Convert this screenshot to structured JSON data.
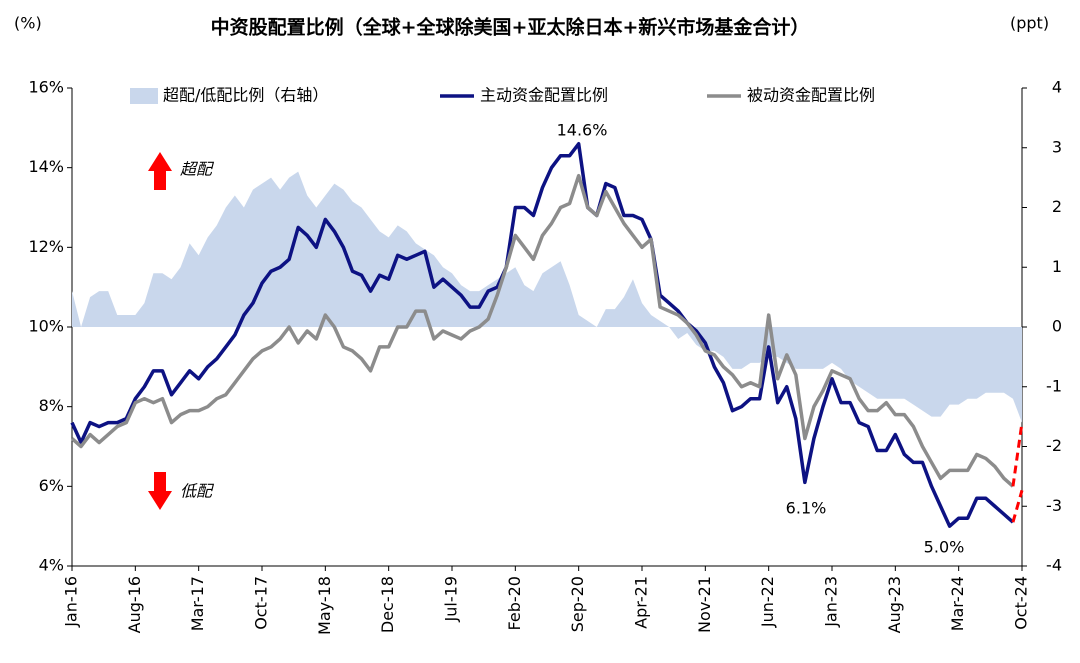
{
  "chart_data": {
    "type": "line",
    "title": "中资股配置比例（全球+全球除美国+亚太除日本+新兴市场基金合计）",
    "y_label": "(%)",
    "y2_label": "(ppt)",
    "categories": [
      "Jan-16",
      null,
      null,
      null,
      null,
      null,
      null,
      "Aug-16",
      null,
      null,
      null,
      null,
      null,
      null,
      "Mar-17",
      null,
      null,
      null,
      null,
      null,
      null,
      "Oct-17",
      null,
      null,
      null,
      null,
      null,
      null,
      "May-18",
      null,
      null,
      null,
      null,
      null,
      null,
      "Dec-18",
      null,
      null,
      null,
      null,
      null,
      null,
      "Jul-19",
      null,
      null,
      null,
      null,
      null,
      null,
      "Feb-20",
      null,
      null,
      null,
      null,
      null,
      null,
      "Sep-20",
      null,
      null,
      null,
      null,
      null,
      null,
      "Apr-21",
      null,
      null,
      null,
      null,
      null,
      null,
      "Nov-21",
      null,
      null,
      null,
      null,
      null,
      null,
      "Jun-22",
      null,
      null,
      null,
      null,
      null,
      null,
      "Jan-23",
      null,
      null,
      null,
      null,
      null,
      null,
      "Aug-23",
      null,
      null,
      null,
      null,
      null,
      null,
      "Mar-24",
      null,
      null,
      null,
      null,
      null,
      null,
      "Oct-24"
    ],
    "ylim": [
      4,
      16
    ],
    "yticks": [
      {
        "value": 4,
        "label": "4%"
      },
      {
        "value": 6,
        "label": "6%"
      },
      {
        "value": 8,
        "label": "8%"
      },
      {
        "value": 10,
        "label": "10%"
      },
      {
        "value": 12,
        "label": "12%"
      },
      {
        "value": 14,
        "label": "14%"
      },
      {
        "value": 16,
        "label": "16%"
      }
    ],
    "y2lim": [
      -4,
      4
    ],
    "y2ticks": [
      -4,
      -3,
      -2,
      -1,
      0,
      1,
      2,
      3,
      4
    ],
    "series": [
      {
        "name": "超配/低配比例（右轴）",
        "type": "area",
        "axis": "y2",
        "color": "#c9d7ec",
        "values": [
          0.6,
          0.0,
          0.5,
          0.6,
          0.6,
          0.2,
          0.2,
          0.2,
          0.4,
          0.9,
          0.9,
          0.8,
          1.0,
          1.4,
          1.2,
          1.5,
          1.7,
          2.0,
          2.2,
          2.0,
          2.3,
          2.4,
          2.5,
          2.3,
          2.5,
          2.6,
          2.2,
          2.0,
          2.2,
          2.4,
          2.3,
          2.1,
          2.0,
          1.8,
          1.6,
          1.5,
          1.7,
          1.6,
          1.4,
          1.3,
          1.2,
          1.0,
          0.9,
          0.7,
          0.6,
          0.6,
          0.7,
          0.8,
          0.9,
          1.0,
          0.7,
          0.6,
          0.9,
          1.0,
          1.1,
          0.7,
          0.2,
          0.1,
          0.0,
          0.3,
          0.3,
          0.5,
          0.8,
          0.4,
          0.2,
          0.1,
          0.0,
          -0.2,
          -0.1,
          -0.3,
          -0.4,
          -0.4,
          -0.5,
          -0.7,
          -0.7,
          -0.6,
          -0.6,
          -0.5,
          -0.5,
          -0.6,
          -0.7,
          -0.7,
          -0.7,
          -0.7,
          -0.6,
          -0.7,
          -0.9,
          -1.0,
          -1.1,
          -1.2,
          -1.2,
          -1.2,
          -1.2,
          -1.3,
          -1.4,
          -1.5,
          -1.5,
          -1.3,
          -1.3,
          -1.2,
          -1.2,
          -1.1,
          -1.1,
          -1.1,
          -1.2,
          -1.6
        ]
      },
      {
        "name": "主动资金配置比例",
        "type": "line",
        "color": "#0d1283",
        "values": [
          7.6,
          7.1,
          7.6,
          7.5,
          7.6,
          7.6,
          7.7,
          8.2,
          8.5,
          8.9,
          8.9,
          8.3,
          8.6,
          8.9,
          8.7,
          9.0,
          9.2,
          9.5,
          9.8,
          10.3,
          10.6,
          11.1,
          11.4,
          11.5,
          11.7,
          12.5,
          12.3,
          12.0,
          12.7,
          12.4,
          12.0,
          11.4,
          11.3,
          10.9,
          11.3,
          11.2,
          11.8,
          11.7,
          11.8,
          11.9,
          11.0,
          11.2,
          11.0,
          10.8,
          10.5,
          10.5,
          10.9,
          11.0,
          11.5,
          13.0,
          13.0,
          12.8,
          13.5,
          14.0,
          14.3,
          14.3,
          14.6,
          13.0,
          12.8,
          13.6,
          13.5,
          12.8,
          12.8,
          12.7,
          12.2,
          10.8,
          10.6,
          10.4,
          10.1,
          9.9,
          9.6,
          9.0,
          8.6,
          7.9,
          8.0,
          8.2,
          8.2,
          9.5,
          8.1,
          8.5,
          7.7,
          6.1,
          7.2,
          8.0,
          8.7,
          8.1,
          8.1,
          7.6,
          7.5,
          6.9,
          6.9,
          7.3,
          6.8,
          6.6,
          6.6,
          6.0,
          5.5,
          5.0,
          5.2,
          5.2,
          5.7,
          5.7,
          5.5,
          5.3,
          5.1,
          null
        ]
      },
      {
        "name": "被动资金配置比例",
        "type": "line",
        "color": "#8c8c8c",
        "values": [
          7.2,
          7.0,
          7.3,
          7.1,
          7.3,
          7.5,
          7.6,
          8.1,
          8.2,
          8.1,
          8.2,
          7.6,
          7.8,
          7.9,
          7.9,
          8.0,
          8.2,
          8.3,
          8.6,
          8.9,
          9.2,
          9.4,
          9.5,
          9.7,
          10.0,
          9.6,
          9.9,
          9.7,
          10.3,
          10.0,
          9.5,
          9.4,
          9.2,
          8.9,
          9.5,
          9.5,
          10.0,
          10.0,
          10.4,
          10.4,
          9.7,
          9.9,
          9.8,
          9.7,
          9.9,
          10.0,
          10.2,
          10.8,
          11.5,
          12.3,
          12.0,
          11.7,
          12.3,
          12.6,
          13.0,
          13.1,
          13.8,
          13.0,
          12.8,
          13.4,
          13.0,
          12.6,
          12.3,
          12.0,
          12.2,
          10.5,
          10.4,
          10.3,
          10.1,
          9.8,
          9.4,
          9.3,
          9.0,
          8.8,
          8.5,
          8.6,
          8.5,
          10.3,
          8.7,
          9.3,
          8.8,
          7.2,
          8.0,
          8.4,
          8.9,
          8.8,
          8.7,
          8.2,
          7.9,
          7.9,
          8.1,
          7.8,
          7.8,
          7.5,
          7.0,
          6.6,
          6.2,
          6.4,
          6.4,
          6.4,
          6.8,
          6.7,
          6.5,
          6.2,
          6.0,
          null
        ]
      }
    ],
    "projections": [
      {
        "color": "#ff0000",
        "values": [
          null,
          null,
          null,
          null,
          null,
          null,
          null,
          null,
          null,
          null,
          null,
          null,
          null,
          null,
          null,
          null,
          null,
          null,
          null,
          null,
          null,
          null,
          null,
          null,
          null,
          null,
          null,
          null,
          null,
          null,
          null,
          null,
          null,
          null,
          null,
          null,
          null,
          null,
          null,
          null,
          null,
          null,
          null,
          null,
          null,
          null,
          null,
          null,
          null,
          null,
          null,
          null,
          null,
          null,
          null,
          null,
          null,
          null,
          null,
          null,
          null,
          null,
          null,
          null,
          null,
          null,
          null,
          null,
          null,
          null,
          null,
          null,
          null,
          null,
          null,
          null,
          null,
          null,
          null,
          null,
          null,
          null,
          null,
          null,
          null,
          null,
          null,
          null,
          null,
          null,
          null,
          null,
          null,
          null,
          null,
          null,
          null,
          null,
          null,
          null,
          null,
          null,
          null,
          null,
          5.1,
          5.9
        ]
      },
      {
        "color": "#ff0000",
        "values": [
          null,
          null,
          null,
          null,
          null,
          null,
          null,
          null,
          null,
          null,
          null,
          null,
          null,
          null,
          null,
          null,
          null,
          null,
          null,
          null,
          null,
          null,
          null,
          null,
          null,
          null,
          null,
          null,
          null,
          null,
          null,
          null,
          null,
          null,
          null,
          null,
          null,
          null,
          null,
          null,
          null,
          null,
          null,
          null,
          null,
          null,
          null,
          null,
          null,
          null,
          null,
          null,
          null,
          null,
          null,
          null,
          null,
          null,
          null,
          null,
          null,
          null,
          null,
          null,
          null,
          null,
          null,
          null,
          null,
          null,
          null,
          null,
          null,
          null,
          null,
          null,
          null,
          null,
          null,
          null,
          null,
          null,
          null,
          null,
          null,
          null,
          null,
          null,
          null,
          null,
          null,
          null,
          null,
          null,
          null,
          null,
          null,
          null,
          null,
          null,
          null,
          null,
          null,
          null,
          6.0,
          7.6
        ]
      }
    ],
    "annotations": [
      "14.6%",
      "6.1%",
      "5.0%",
      "超配",
      "低配"
    ],
    "legend": "top"
  }
}
